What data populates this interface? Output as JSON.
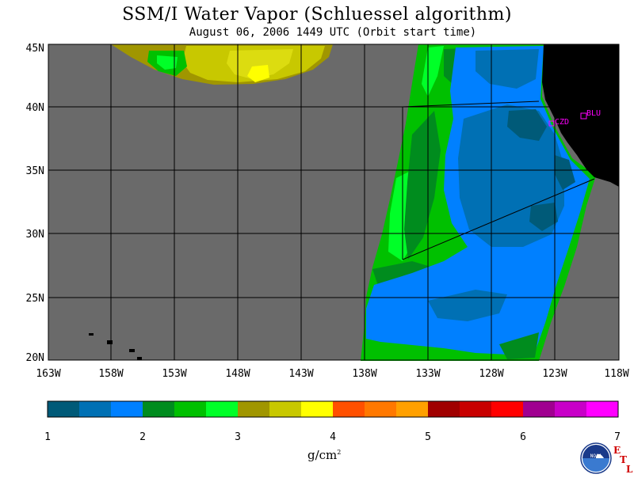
{
  "title": "SSM/I Water Vapor (Schluessel algorithm)",
  "subtitle": "August 06, 2006  1449 UTC  (Orbit start time)",
  "map": {
    "lat_labels": [
      "45N",
      "40N",
      "35N",
      "30N",
      "25N",
      "20N"
    ],
    "lon_labels": [
      "163W",
      "158W",
      "153W",
      "148W",
      "143W",
      "138W",
      "133W",
      "128W",
      "123W",
      "118W"
    ],
    "stations": [
      {
        "id": "czd",
        "label": "CZD"
      },
      {
        "id": "blu",
        "label": "BLU"
      }
    ],
    "colors": {
      "no_data": "#6a6a6a",
      "land": "#000000",
      "gridline": "#000000",
      "station": "#ff00ff"
    }
  },
  "legend": {
    "tick_labels": [
      "1",
      "2",
      "3",
      "4",
      "5",
      "6",
      "7"
    ],
    "units": "g/cm",
    "units_exponent": "2",
    "colors": [
      "#005a78",
      "#0070b4",
      "#0080ff",
      "#008c1e",
      "#00c000",
      "#00ff28",
      "#a09600",
      "#c8c800",
      "#ffff00",
      "#ff5000",
      "#ff7800",
      "#ffa000",
      "#a00000",
      "#c80000",
      "#ff0000",
      "#a00090",
      "#c800c8",
      "#ff00ff"
    ]
  },
  "logo": {
    "name": "noaa-logo",
    "text": "NOAA",
    "etl_letters": [
      "E",
      "T",
      "L"
    ]
  }
}
